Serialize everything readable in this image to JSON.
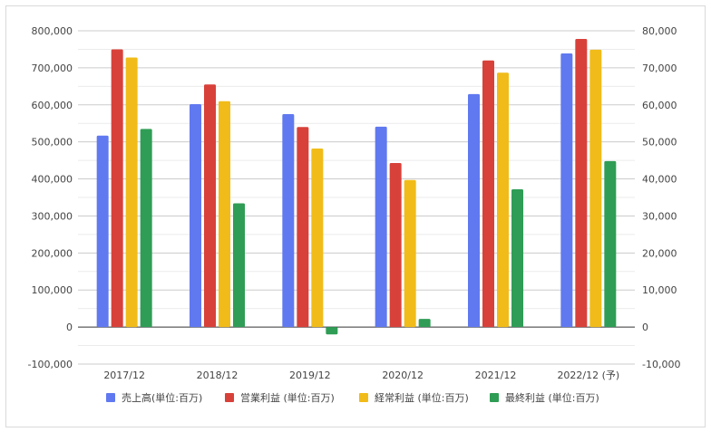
{
  "chart_data": {
    "type": "bar",
    "categories": [
      "2017/12",
      "2018/12",
      "2019/12",
      "2020/12",
      "2021/12",
      "2022/12 (予)"
    ],
    "series": [
      {
        "name": "売上高(単位:百万)",
        "axis": "left",
        "color": "#6079f0",
        "values": [
          517000,
          602000,
          575000,
          541000,
          629000,
          739000
        ]
      },
      {
        "name": "営業利益 (単位:百万)",
        "axis": "right",
        "color": "#d8413a",
        "values": [
          75000,
          65500,
          54000,
          44300,
          72000,
          77800
        ]
      },
      {
        "name": "経常利益 (単位:百万)",
        "axis": "right",
        "color": "#f1bc19",
        "values": [
          72800,
          61000,
          48200,
          39700,
          68700,
          74900
        ]
      },
      {
        "name": "最終利益 (単位:百万)",
        "axis": "right",
        "color": "#2f9d55",
        "values": [
          53500,
          33400,
          -2000,
          2200,
          37200,
          44800
        ]
      }
    ],
    "y_left": {
      "min": -100000,
      "max": 800000,
      "step": 100000,
      "tick_labels": [
        "800,000",
        "700,000",
        "600,000",
        "500,000",
        "400,000",
        "300,000",
        "200,000",
        "100,000",
        "0",
        "-100,000"
      ]
    },
    "y_right": {
      "min": -10000,
      "max": 80000,
      "step": 10000,
      "tick_labels": [
        "80,000",
        "70,000",
        "60,000",
        "50,000",
        "40,000",
        "30,000",
        "20,000",
        "10,000",
        "0",
        "-10,000"
      ]
    },
    "grid": true,
    "legend": "bottom"
  }
}
